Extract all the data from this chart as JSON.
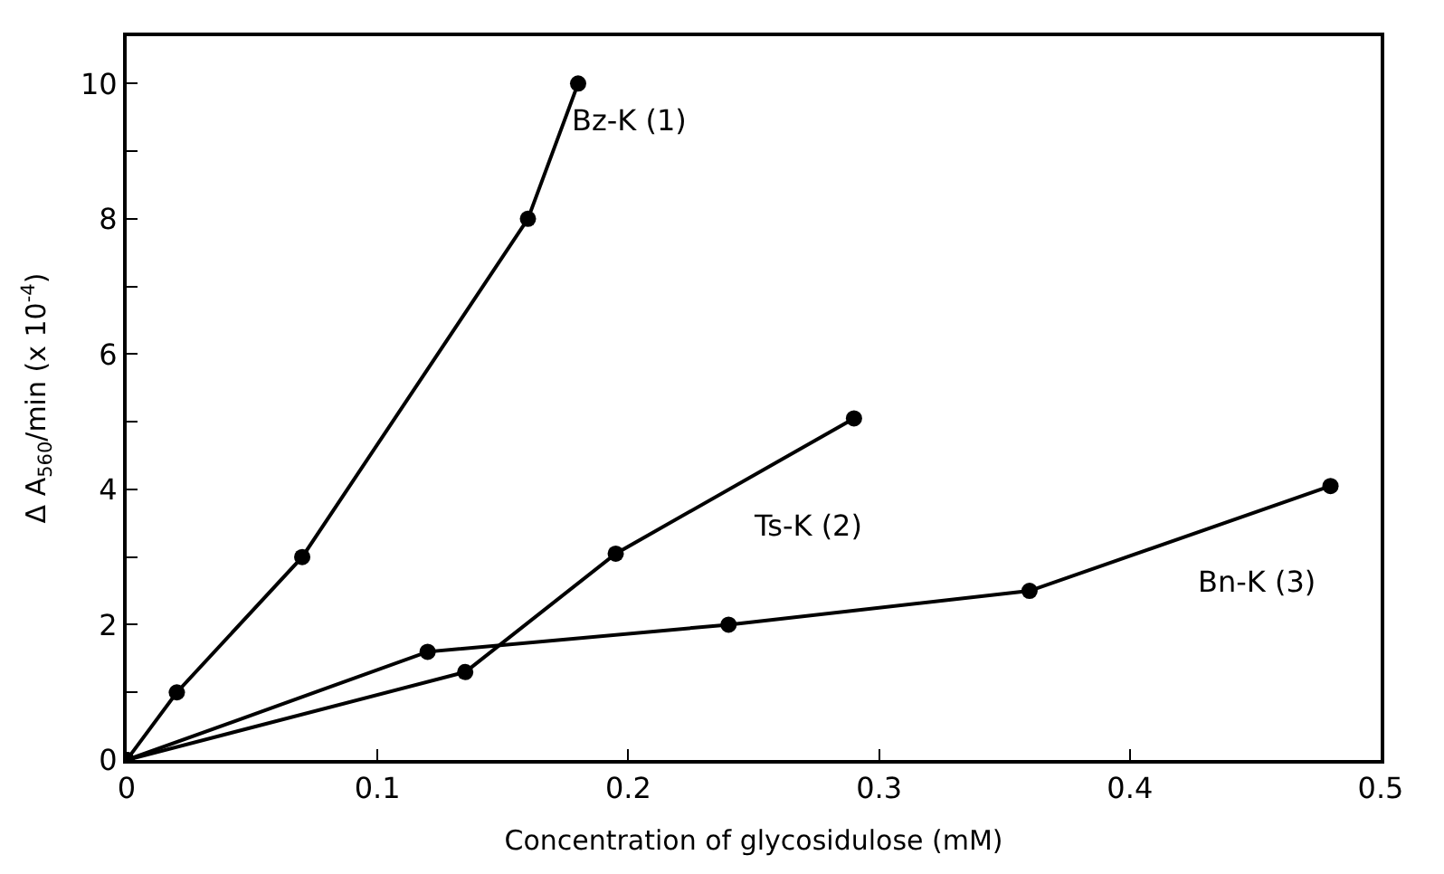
{
  "chart_data": {
    "type": "line",
    "xlabel": "Concentration of glycosidulose (mM)",
    "ylabel": "Δ A$_{560}$/min (x 10$^{-4}$)",
    "series": [
      {
        "name": "Bz-K (1)",
        "color": "#000000",
        "x": [
          0,
          0.02,
          0.07,
          0.16,
          0.18
        ],
        "values": [
          0,
          1.0,
          3.0,
          8.0,
          10.0
        ]
      },
      {
        "name": "Ts-K (2)",
        "color": "#000000",
        "x": [
          0,
          0.135,
          0.195,
          0.29
        ],
        "values": [
          0,
          1.3,
          3.05,
          5.05
        ]
      },
      {
        "name": "Bn-K (3)",
        "color": "#000000",
        "x": [
          0,
          0.12,
          0.24,
          0.36,
          0.48
        ],
        "values": [
          0,
          1.6,
          2.0,
          2.5,
          4.05
        ]
      }
    ],
    "xlim": [
      0,
      0.5
    ],
    "ylim": [
      0,
      10.7
    ],
    "xticks": [
      0,
      0.1,
      0.2,
      0.3,
      0.4,
      0.5
    ],
    "yticks": [
      0,
      {
        "value": 1,
        "label": null
      },
      2,
      {
        "value": 3,
        "label": null
      },
      4,
      {
        "value": 5,
        "label": null
      },
      6,
      {
        "value": 7,
        "label": null
      },
      8,
      {
        "value": 9,
        "label": null
      },
      10
    ],
    "marker": "circle",
    "line_style": "solid",
    "legend": false
  }
}
